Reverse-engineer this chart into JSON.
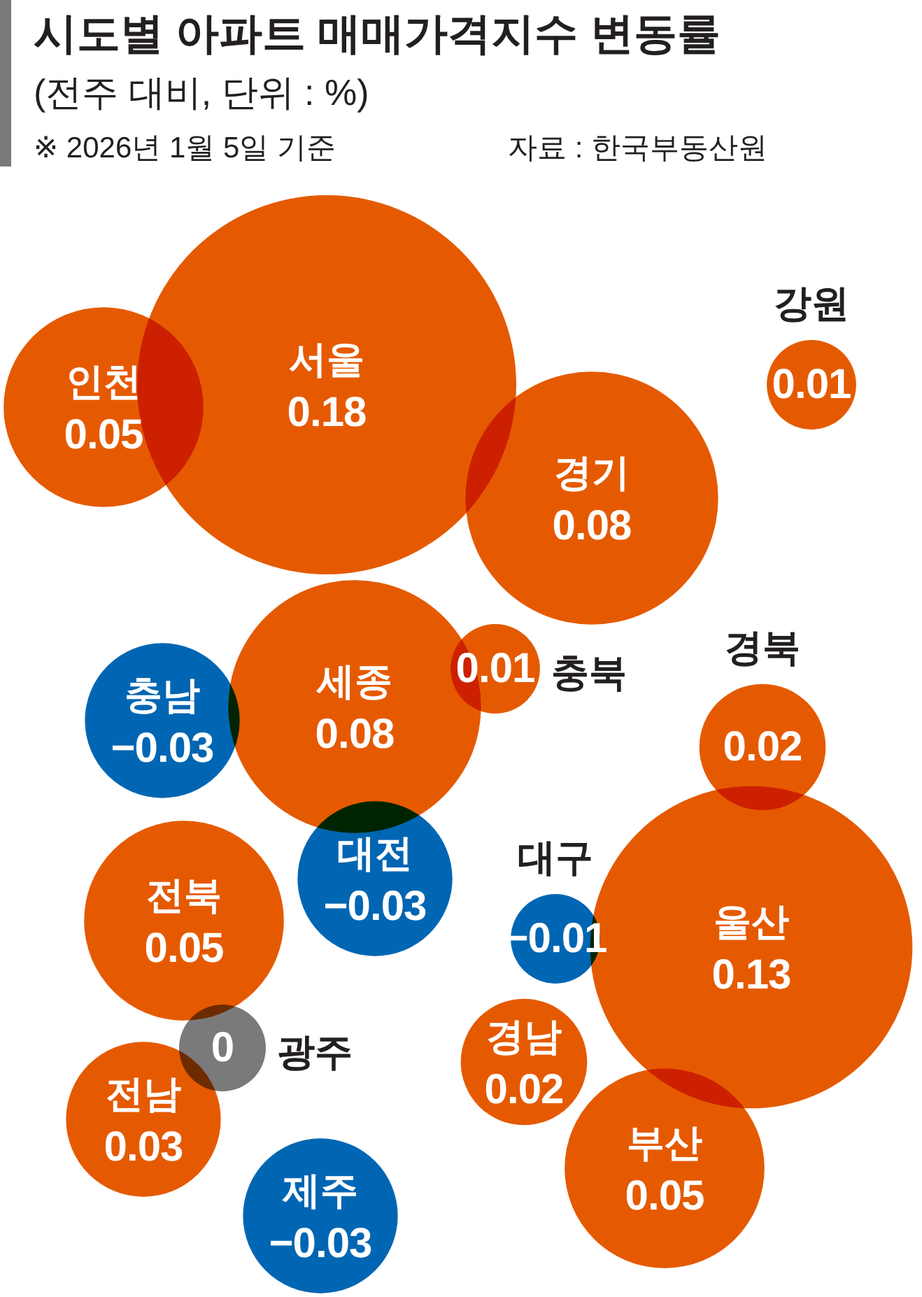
{
  "chart_data": {
    "type": "other",
    "title": "시도별 아파트 매매가격지수 변동률",
    "subtitle": "(전주 대비, 단위 : %)",
    "annotations": [
      "※ 2026년 1월 5일 기준",
      "자료 : 한국부동산원"
    ],
    "categories": [
      "서울",
      "인천",
      "경기",
      "강원",
      "세종",
      "충남",
      "충북",
      "경북",
      "대전",
      "전북",
      "대구",
      "울산",
      "광주",
      "전남",
      "경남",
      "부산",
      "제주"
    ],
    "values": [
      0.18,
      0.05,
      0.08,
      0.01,
      0.08,
      -0.03,
      0.01,
      0.02,
      -0.03,
      0.05,
      -0.01,
      0.13,
      0,
      0.03,
      0.02,
      0.05,
      -0.03
    ],
    "colors": [
      "#e55a00",
      "#e55a00",
      "#e55a00",
      "#e55a00",
      "#e55a00",
      "#0066b3",
      "#e55a00",
      "#e55a00",
      "#0066b3",
      "#e55a00",
      "#0066b3",
      "#e55a00",
      "#7a7a7a",
      "#e55a00",
      "#e55a00",
      "#e55a00",
      "#0066b3"
    ],
    "data_labels": true
  }
}
